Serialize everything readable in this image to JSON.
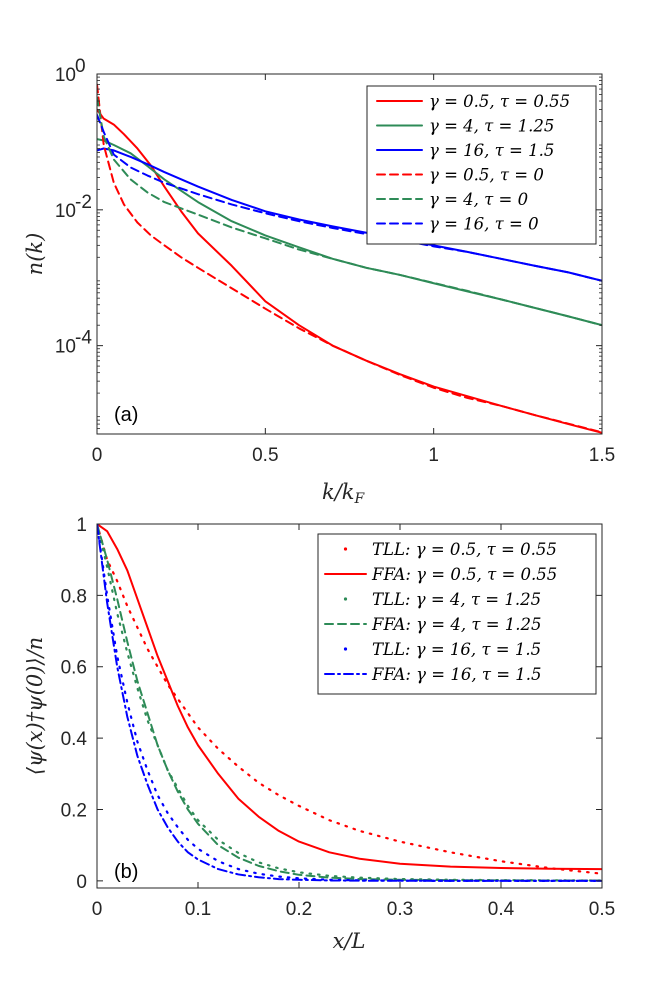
{
  "chart_data": [
    {
      "type": "line",
      "panel_label": "(a)",
      "xlabel": "k/k_F",
      "xlabel_display": "k/kF",
      "ylabel": "n(k)",
      "yscale": "log",
      "xlim": [
        0,
        1.5
      ],
      "ylim": [
        5e-06,
        1
      ],
      "x_ticks": [
        0,
        0.5,
        1,
        1.5
      ],
      "x_tick_labels": [
        "0",
        "0.5",
        "1",
        "1.5"
      ],
      "y_ticks": [
        0.0001,
        0.01,
        1
      ],
      "y_tick_bases": [
        "10",
        "10",
        "10"
      ],
      "y_tick_exps": [
        "-4",
        "-2",
        "0"
      ],
      "legend_position": "top-right",
      "series": [
        {
          "name": "γ = 0.5, τ = 0.55",
          "color": "#ff0000",
          "style": "solid",
          "x": [
            0,
            0.02,
            0.05,
            0.08,
            0.12,
            0.16,
            0.2,
            0.25,
            0.3,
            0.4,
            0.5,
            0.6,
            0.7,
            0.8,
            0.9,
            1.0,
            1.1,
            1.2,
            1.3,
            1.4,
            1.5
          ],
          "y": [
            0.3,
            0.22,
            0.18,
            0.13,
            0.08,
            0.045,
            0.022,
            0.0095,
            0.0045,
            0.0015,
            0.00045,
            0.0002,
            0.0001,
            6e-05,
            3.8e-05,
            2.5e-05,
            1.8e-05,
            1.3e-05,
            9.5e-06,
            7e-06,
            5.2e-06
          ]
        },
        {
          "name": "γ = 4, τ = 1.25",
          "color": "#2e8b57",
          "style": "solid",
          "x": [
            0,
            0.02,
            0.05,
            0.1,
            0.15,
            0.2,
            0.3,
            0.4,
            0.5,
            0.6,
            0.7,
            0.8,
            0.9,
            1.0,
            1.1,
            1.2,
            1.3,
            1.4,
            1.5
          ],
          "y": [
            0.11,
            0.105,
            0.09,
            0.068,
            0.044,
            0.028,
            0.013,
            0.0068,
            0.0042,
            0.0028,
            0.0019,
            0.0014,
            0.0011,
            0.00083,
            0.00063,
            0.00048,
            0.00036,
            0.00027,
            0.0002
          ]
        },
        {
          "name": "γ = 16, τ = 1.5",
          "color": "#0000ff",
          "style": "solid",
          "x": [
            0,
            0.02,
            0.05,
            0.1,
            0.15,
            0.2,
            0.3,
            0.4,
            0.5,
            0.6,
            0.7,
            0.8,
            0.9,
            1.0,
            1.1,
            1.2,
            1.3,
            1.4,
            1.5
          ],
          "y": [
            0.075,
            0.08,
            0.075,
            0.06,
            0.047,
            0.036,
            0.022,
            0.014,
            0.0095,
            0.0072,
            0.0057,
            0.0046,
            0.0037,
            0.003,
            0.0024,
            0.0019,
            0.0015,
            0.0012,
            0.0009
          ]
        },
        {
          "name": "γ = 0.5, τ = 0",
          "color": "#ff0000",
          "style": "dashed",
          "x": [
            0,
            0.02,
            0.05,
            0.08,
            0.12,
            0.16,
            0.2,
            0.25,
            0.3,
            0.4,
            0.5,
            0.6,
            0.7,
            0.8,
            0.9,
            1.0,
            1.1,
            1.2,
            1.3,
            1.4,
            1.5
          ],
          "y": [
            0.7,
            0.09,
            0.025,
            0.012,
            0.0065,
            0.0042,
            0.003,
            0.002,
            0.0014,
            0.0007,
            0.00035,
            0.00018,
            0.0001,
            6e-05,
            3.7e-05,
            2.4e-05,
            1.7e-05,
            1.3e-05,
            9.5e-06,
            7.1e-06,
            5.3e-06
          ]
        },
        {
          "name": "γ = 4, τ = 0",
          "color": "#2e8b57",
          "style": "dashed",
          "x": [
            0,
            0.02,
            0.05,
            0.1,
            0.15,
            0.2,
            0.3,
            0.4,
            0.5,
            0.6,
            0.7,
            0.8,
            0.9,
            1.0,
            1.1,
            1.2,
            1.3,
            1.4,
            1.5
          ],
          "y": [
            0.45,
            0.12,
            0.055,
            0.028,
            0.018,
            0.013,
            0.0085,
            0.0055,
            0.0038,
            0.0026,
            0.0019,
            0.0014,
            0.0011,
            0.00084,
            0.00064,
            0.00048,
            0.00036,
            0.00027,
            0.0002
          ]
        },
        {
          "name": "γ = 16, τ = 0",
          "color": "#0000ff",
          "style": "dashed",
          "x": [
            0,
            0.02,
            0.05,
            0.1,
            0.15,
            0.2,
            0.3,
            0.4,
            0.5,
            0.6,
            0.7,
            0.8,
            0.9,
            1.0,
            1.1,
            1.2,
            1.3,
            1.4,
            1.5
          ],
          "y": [
            0.25,
            0.14,
            0.065,
            0.042,
            0.032,
            0.025,
            0.017,
            0.012,
            0.0089,
            0.0068,
            0.0054,
            0.0044,
            0.0036,
            0.0029,
            0.0024,
            0.0019,
            0.0015,
            0.0012,
            0.0009
          ]
        }
      ]
    },
    {
      "type": "line",
      "panel_label": "(b)",
      "xlabel": "x/L",
      "ylabel": "⟨ψ(x)†ψ(0)⟩/n",
      "yscale": "linear",
      "xlim": [
        0,
        0.5
      ],
      "ylim": [
        -0.02,
        1
      ],
      "x_ticks": [
        0,
        0.1,
        0.2,
        0.3,
        0.4,
        0.5
      ],
      "x_tick_labels": [
        "0",
        "0.1",
        "0.2",
        "0.3",
        "0.4",
        "0.5"
      ],
      "y_ticks": [
        0,
        0.2,
        0.4,
        0.6,
        0.8,
        1
      ],
      "y_tick_labels": [
        "0",
        "0.2",
        "0.4",
        "0.6",
        "0.8",
        "1"
      ],
      "legend_position": "top-right",
      "series": [
        {
          "name": "TLL: γ = 0.5, τ = 0.55",
          "color": "#ff0000",
          "style": "dotted",
          "x": [
            0,
            0.01,
            0.02,
            0.03,
            0.04,
            0.05,
            0.06,
            0.07,
            0.08,
            0.09,
            0.1,
            0.12,
            0.14,
            0.16,
            0.18,
            0.2,
            0.23,
            0.26,
            0.3,
            0.35,
            0.4,
            0.45,
            0.5
          ],
          "y": [
            1.0,
            0.9,
            0.84,
            0.77,
            0.71,
            0.65,
            0.6,
            0.55,
            0.51,
            0.47,
            0.43,
            0.37,
            0.32,
            0.275,
            0.24,
            0.21,
            0.17,
            0.14,
            0.11,
            0.08,
            0.055,
            0.035,
            0.02
          ]
        },
        {
          "name": "FFA: γ = 0.5, τ = 0.55",
          "color": "#ff0000",
          "style": "solid",
          "x": [
            0,
            0.01,
            0.02,
            0.03,
            0.04,
            0.05,
            0.06,
            0.07,
            0.08,
            0.09,
            0.1,
            0.12,
            0.14,
            0.16,
            0.18,
            0.2,
            0.23,
            0.26,
            0.3,
            0.35,
            0.4,
            0.45,
            0.5
          ],
          "y": [
            1.0,
            0.98,
            0.93,
            0.87,
            0.79,
            0.71,
            0.63,
            0.56,
            0.49,
            0.43,
            0.38,
            0.3,
            0.23,
            0.18,
            0.14,
            0.11,
            0.08,
            0.062,
            0.048,
            0.04,
            0.036,
            0.034,
            0.033
          ]
        },
        {
          "name": "TLL: γ = 4, τ = 1.25",
          "color": "#2e8b57",
          "style": "dotted",
          "x": [
            0,
            0.01,
            0.02,
            0.03,
            0.04,
            0.05,
            0.06,
            0.07,
            0.08,
            0.09,
            0.1,
            0.12,
            0.14,
            0.16,
            0.18,
            0.2,
            0.23,
            0.26,
            0.3,
            0.35,
            0.4,
            0.45,
            0.5
          ],
          "y": [
            1.0,
            0.88,
            0.75,
            0.64,
            0.54,
            0.45,
            0.38,
            0.31,
            0.26,
            0.21,
            0.17,
            0.115,
            0.078,
            0.052,
            0.035,
            0.024,
            0.014,
            0.009,
            0.005,
            0.003,
            0.002,
            0.0015,
            0.001
          ]
        },
        {
          "name": "FFA: γ = 4, τ = 1.25",
          "color": "#2e8b57",
          "style": "dashed",
          "x": [
            0,
            0.01,
            0.02,
            0.03,
            0.04,
            0.05,
            0.06,
            0.07,
            0.08,
            0.09,
            0.1,
            0.12,
            0.14,
            0.16,
            0.18,
            0.2,
            0.23,
            0.26,
            0.3,
            0.35,
            0.4,
            0.45,
            0.5
          ],
          "y": [
            1.0,
            0.9,
            0.79,
            0.67,
            0.56,
            0.47,
            0.38,
            0.31,
            0.25,
            0.2,
            0.16,
            0.1,
            0.065,
            0.042,
            0.027,
            0.017,
            0.009,
            0.005,
            0.003,
            0.002,
            0.0015,
            0.001,
            0.001
          ]
        },
        {
          "name": "TLL: γ = 16, τ = 1.5",
          "color": "#0000ff",
          "style": "dotted",
          "x": [
            0,
            0.01,
            0.02,
            0.03,
            0.04,
            0.05,
            0.06,
            0.07,
            0.08,
            0.09,
            0.1,
            0.12,
            0.14,
            0.16,
            0.18,
            0.2,
            0.23,
            0.26,
            0.3,
            0.35,
            0.4,
            0.45,
            0.5
          ],
          "y": [
            1.0,
            0.8,
            0.63,
            0.5,
            0.39,
            0.31,
            0.24,
            0.19,
            0.15,
            0.115,
            0.09,
            0.055,
            0.033,
            0.02,
            0.012,
            0.007,
            0.003,
            0.0015,
            0.0006,
            0.0002,
            0.0001,
            0.0,
            0.0
          ]
        },
        {
          "name": "FFA: γ = 16, τ = 1.5",
          "color": "#0000ff",
          "style": "dashdot",
          "x": [
            0,
            0.01,
            0.02,
            0.03,
            0.04,
            0.05,
            0.06,
            0.07,
            0.08,
            0.09,
            0.1,
            0.12,
            0.14,
            0.16,
            0.18,
            0.2,
            0.23,
            0.26,
            0.3,
            0.35,
            0.4,
            0.45,
            0.5
          ],
          "y": [
            1.0,
            0.78,
            0.6,
            0.46,
            0.35,
            0.27,
            0.2,
            0.15,
            0.11,
            0.08,
            0.06,
            0.033,
            0.018,
            0.01,
            0.005,
            0.003,
            0.0012,
            0.0005,
            0.0002,
            0.0001,
            0.0,
            0.0,
            0.0
          ]
        }
      ]
    }
  ]
}
